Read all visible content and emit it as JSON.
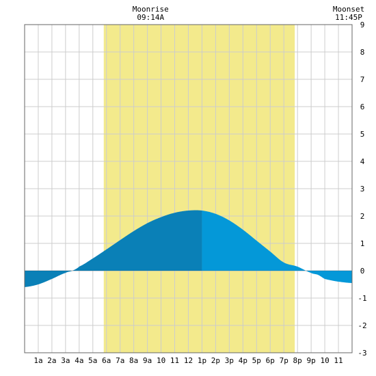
{
  "chart_data": {
    "type": "area",
    "title": "",
    "xlabel": "",
    "ylabel": "",
    "x_unit": "hour of day",
    "xlim": [
      0,
      24
    ],
    "ylim": [
      -3,
      9
    ],
    "grid": true,
    "y_ticks": [
      -3,
      -2,
      -1,
      0,
      1,
      2,
      3,
      4,
      5,
      6,
      7,
      8,
      9
    ],
    "x_tick_labels": [
      "1a",
      "2a",
      "3a",
      "4a",
      "5a",
      "6a",
      "7a",
      "8a",
      "9a",
      "10",
      "11",
      "12",
      "1p",
      "2p",
      "3p",
      "4p",
      "5p",
      "6p",
      "7p",
      "8p",
      "9p",
      "10",
      "11"
    ],
    "daylight": {
      "start_hour": 5.8,
      "end_hour": 19.8
    },
    "events": [
      {
        "label": "Moonrise",
        "time": "09:14A",
        "hour": 9.233
      },
      {
        "label": "Moonset",
        "time": "11:45P",
        "hour": 23.75
      }
    ],
    "split_hour": 13.0,
    "series": [
      {
        "x": [
          0,
          1,
          2,
          3,
          3.5,
          4,
          5,
          6,
          7,
          8,
          9,
          10,
          11,
          12,
          13,
          14,
          15,
          16,
          17,
          18,
          19,
          20,
          21,
          21.5,
          22,
          23,
          24
        ],
        "values": [
          -0.6,
          -0.5,
          -0.3,
          -0.08,
          0.0,
          0.15,
          0.45,
          0.78,
          1.12,
          1.45,
          1.74,
          1.96,
          2.12,
          2.2,
          2.2,
          2.08,
          1.84,
          1.5,
          1.1,
          0.7,
          0.3,
          0.15,
          -0.08,
          -0.15,
          -0.3,
          -0.4,
          -0.45
        ]
      }
    ],
    "colors": {
      "daylight": "#f3ea8c",
      "tide_before_peak": "#0a80b7",
      "tide_after_peak": "#0498d8",
      "grid": "#cccccc",
      "border": "#666666"
    }
  }
}
